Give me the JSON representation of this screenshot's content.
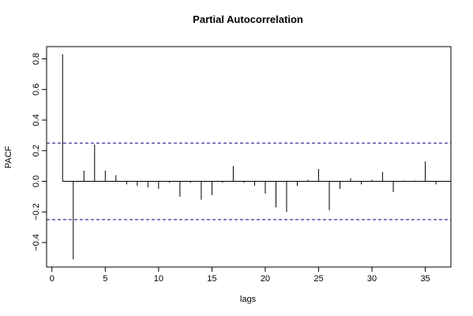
{
  "chart_data": {
    "type": "bar",
    "title": "Partial Autocorrelation",
    "xlabel": "lags",
    "ylabel": "PACF",
    "xlim": [
      -0.5,
      37.4
    ],
    "ylim": [
      -0.56,
      0.88
    ],
    "xticks": [
      0,
      5,
      10,
      15,
      20,
      25,
      30,
      35
    ],
    "xtick_labels": [
      "0",
      "5",
      "10",
      "15",
      "20",
      "25",
      "30",
      "35"
    ],
    "yticks": [
      -0.4,
      -0.2,
      0.0,
      0.2,
      0.4,
      0.6,
      0.8
    ],
    "ytick_labels": [
      "−0.4",
      "−0.2",
      "0.0",
      "0.2",
      "0.4",
      "0.6",
      "0.8"
    ],
    "confidence_bounds": [
      -0.25,
      0.25
    ],
    "x": [
      1,
      2,
      3,
      4,
      5,
      6,
      7,
      8,
      9,
      10,
      11,
      12,
      13,
      14,
      15,
      16,
      17,
      18,
      19,
      20,
      21,
      22,
      23,
      24,
      25,
      26,
      27,
      28,
      29,
      30,
      31,
      32,
      33,
      34,
      35,
      36
    ],
    "values": [
      0.83,
      -0.51,
      0.07,
      0.24,
      0.07,
      0.04,
      -0.02,
      -0.03,
      -0.04,
      -0.05,
      -0.01,
      -0.1,
      -0.01,
      -0.12,
      -0.09,
      -0.01,
      0.1,
      -0.01,
      -0.03,
      -0.08,
      -0.17,
      -0.2,
      -0.03,
      0.01,
      0.08,
      -0.19,
      -0.05,
      0.02,
      -0.02,
      0.01,
      0.06,
      -0.07,
      0.005,
      0.005,
      0.13,
      -0.02
    ],
    "grid": false,
    "colors": {
      "bars": "#000000",
      "bounds": "#00008b",
      "zero_line": "#000000",
      "axes": "#000000"
    }
  }
}
